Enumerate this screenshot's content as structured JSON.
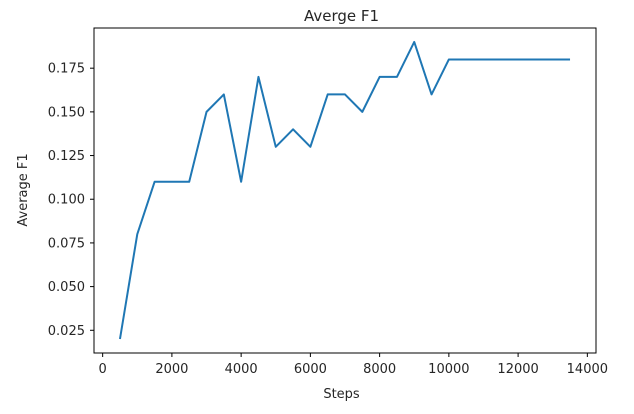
{
  "chart_data": {
    "type": "line",
    "title": "Averge F1",
    "xlabel": "Steps",
    "ylabel": "Average F1",
    "xlim": [
      -250,
      14250
    ],
    "ylim": [
      0.012,
      0.198
    ],
    "x_ticks": [
      0,
      2000,
      4000,
      6000,
      8000,
      10000,
      12000,
      14000
    ],
    "x_tick_labels": [
      "0",
      "2000",
      "4000",
      "6000",
      "8000",
      "10000",
      "12000",
      "14000"
    ],
    "y_ticks": [
      0.025,
      0.05,
      0.075,
      0.1,
      0.125,
      0.15,
      0.175
    ],
    "y_tick_labels": [
      "0.025",
      "0.050",
      "0.075",
      "0.100",
      "0.125",
      "0.150",
      "0.175"
    ],
    "grid": false,
    "line_color": "#1f77b4",
    "x": [
      500,
      1000,
      1500,
      2000,
      2500,
      3000,
      3500,
      4000,
      4500,
      5000,
      5500,
      6000,
      6500,
      7000,
      7500,
      8000,
      8500,
      9000,
      9500,
      10000,
      10500,
      11000,
      11500,
      12000,
      12500,
      13000,
      13500
    ],
    "series": [
      {
        "values": [
          0.02,
          0.08,
          0.11,
          0.11,
          0.11,
          0.15,
          0.16,
          0.11,
          0.17,
          0.13,
          0.14,
          0.13,
          0.16,
          0.16,
          0.15,
          0.17,
          0.17,
          0.19,
          0.16,
          0.18,
          0.18,
          0.18,
          0.18,
          0.18,
          0.18,
          0.18,
          0.18
        ]
      }
    ]
  }
}
